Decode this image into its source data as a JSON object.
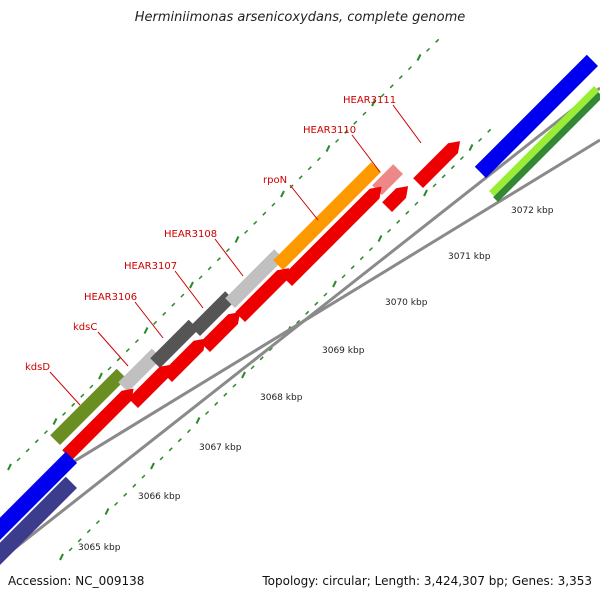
{
  "title": "Herminiimonas arsenicoxydans, complete genome",
  "footer": {
    "accession": "Accession: NC_009138",
    "stats": "Topology: circular; Length: 3,424,307 bp; Genes: 3,353"
  },
  "colors": {
    "backbone": "#8a8a8a",
    "cds_red": "#ee0000",
    "tick_green": "#2a8a2a",
    "label_red": "#cc0000",
    "blue": "#0000ee",
    "navy": "#3c3c8c",
    "lime": "#99ee33",
    "darkgreen": "#338833",
    "olive": "#6b8e23",
    "darkgray": "#555555",
    "lightgray": "#c0c0c0",
    "orange": "#ff9900",
    "pink": "#ee8888"
  },
  "scale_labels": [
    "3065 kbp",
    "3066 kbp",
    "3067 kbp",
    "3068 kbp",
    "3069 kbp",
    "3070 kbp",
    "3071 kbp",
    "3072 kbp"
  ],
  "gene_labels": [
    "kdsD",
    "kdsC",
    "HEAR3106",
    "HEAR3107",
    "HEAR3108",
    "rpoN",
    "HEAR3110",
    "HEAR3111"
  ]
}
